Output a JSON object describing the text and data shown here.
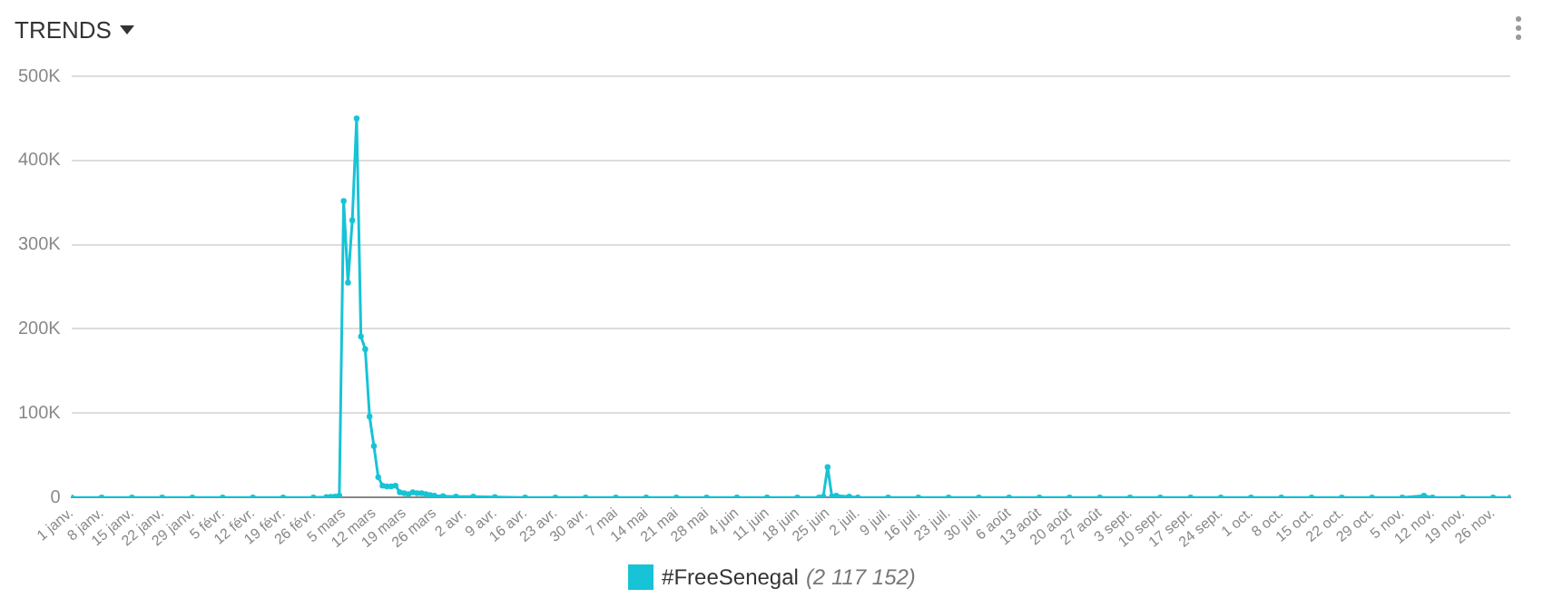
{
  "chart_data": {
    "type": "line",
    "title": "TRENDS",
    "x": [
      "--01-01",
      "--01-08",
      "--01-15",
      "--01-22",
      "--01-29",
      "--02-05",
      "--02-12",
      "--02-19",
      "--02-26",
      "--03-01",
      "--03-02",
      "--03-03",
      "--03-04",
      "--03-05",
      "--03-06",
      "--03-07",
      "--03-08",
      "--03-09",
      "--03-10",
      "--03-11",
      "--03-12",
      "--03-13",
      "--03-14",
      "--03-15",
      "--03-16",
      "--03-17",
      "--03-18",
      "--03-19",
      "--03-20",
      "--03-21",
      "--03-22",
      "--03-23",
      "--03-24",
      "--03-25",
      "--03-26",
      "--03-28",
      "--03-31",
      "--04-04",
      "--04-09",
      "--04-16",
      "--04-23",
      "--04-30",
      "--05-07",
      "--05-14",
      "--05-21",
      "--05-28",
      "--06-04",
      "--06-11",
      "--06-18",
      "--06-23",
      "--06-24",
      "--06-25",
      "--06-26",
      "--06-27",
      "--06-30",
      "--07-02",
      "--07-09",
      "--07-16",
      "--07-23",
      "--07-30",
      "--08-06",
      "--08-13",
      "--08-20",
      "--08-27",
      "--09-03",
      "--09-10",
      "--09-17",
      "--09-24",
      "--10-01",
      "--10-08",
      "--10-15",
      "--10-22",
      "--10-29",
      "--11-05",
      "--11-10",
      "--11-12",
      "--11-19",
      "--11-26",
      "--11-30"
    ],
    "series": [
      {
        "name": "#FreeSenegal",
        "color": "#17c3d6",
        "values": [
          0,
          0,
          0,
          0,
          0,
          0,
          0,
          0,
          0,
          500,
          800,
          1000,
          2000,
          352000,
          255000,
          329000,
          450000,
          191000,
          176000,
          96000,
          61000,
          24000,
          14000,
          13000,
          13000,
          14000,
          6000,
          5000,
          4000,
          6000,
          5000,
          5000,
          4000,
          3000,
          2000,
          1500,
          1000,
          1000,
          500,
          0,
          0,
          0,
          0,
          0,
          0,
          0,
          0,
          0,
          0,
          0,
          1000,
          36000,
          1000,
          2000,
          1000,
          0,
          0,
          0,
          0,
          0,
          0,
          0,
          0,
          0,
          0,
          0,
          0,
          0,
          0,
          0,
          0,
          0,
          0,
          0,
          2000,
          0,
          0,
          0,
          0
        ]
      }
    ],
    "annotations": [
      "(2 117 152)"
    ],
    "xlim": [
      "--01-01",
      "--11-30"
    ],
    "xticks": [
      {
        "value": "--01-01",
        "label": "1 janv."
      },
      {
        "value": "--01-08",
        "label": "8 janv."
      },
      {
        "value": "--01-15",
        "label": "15 janv."
      },
      {
        "value": "--01-22",
        "label": "22 janv."
      },
      {
        "value": "--01-29",
        "label": "29 janv."
      },
      {
        "value": "--02-05",
        "label": "5 févr."
      },
      {
        "value": "--02-12",
        "label": "12 févr."
      },
      {
        "value": "--02-19",
        "label": "19 févr."
      },
      {
        "value": "--02-26",
        "label": "26 févr."
      },
      {
        "value": "--03-05",
        "label": "5 mars"
      },
      {
        "value": "--03-12",
        "label": "12 mars"
      },
      {
        "value": "--03-19",
        "label": "19 mars"
      },
      {
        "value": "--03-26",
        "label": "26 mars"
      },
      {
        "value": "--04-02",
        "label": "2 avr."
      },
      {
        "value": "--04-09",
        "label": "9 avr."
      },
      {
        "value": "--04-16",
        "label": "16 avr."
      },
      {
        "value": "--04-23",
        "label": "23 avr."
      },
      {
        "value": "--04-30",
        "label": "30 avr."
      },
      {
        "value": "--05-07",
        "label": "7 mai"
      },
      {
        "value": "--05-14",
        "label": "14 mai"
      },
      {
        "value": "--05-21",
        "label": "21 mai"
      },
      {
        "value": "--05-28",
        "label": "28 mai"
      },
      {
        "value": "--06-04",
        "label": "4 juin"
      },
      {
        "value": "--06-11",
        "label": "11 juin"
      },
      {
        "value": "--06-18",
        "label": "18 juin"
      },
      {
        "value": "--06-25",
        "label": "25 juin"
      },
      {
        "value": "--07-02",
        "label": "2 juil."
      },
      {
        "value": "--07-09",
        "label": "9 juil."
      },
      {
        "value": "--07-16",
        "label": "16 juil."
      },
      {
        "value": "--07-23",
        "label": "23 juil."
      },
      {
        "value": "--07-30",
        "label": "30 juil."
      },
      {
        "value": "--08-06",
        "label": "6 août"
      },
      {
        "value": "--08-13",
        "label": "13 août"
      },
      {
        "value": "--08-20",
        "label": "20 août"
      },
      {
        "value": "--08-27",
        "label": "27 août"
      },
      {
        "value": "--09-03",
        "label": "3 sept."
      },
      {
        "value": "--09-10",
        "label": "10 sept."
      },
      {
        "value": "--09-17",
        "label": "17 sept."
      },
      {
        "value": "--09-24",
        "label": "24 sept."
      },
      {
        "value": "--10-01",
        "label": "1 oct."
      },
      {
        "value": "--10-08",
        "label": "8 oct."
      },
      {
        "value": "--10-15",
        "label": "15 oct."
      },
      {
        "value": "--10-22",
        "label": "22 oct."
      },
      {
        "value": "--10-29",
        "label": "29 oct."
      },
      {
        "value": "--11-05",
        "label": "5 nov."
      },
      {
        "value": "--11-12",
        "label": "12 nov."
      },
      {
        "value": "--11-19",
        "label": "19 nov."
      },
      {
        "value": "--11-26",
        "label": "26 nov."
      }
    ],
    "ylim": [
      0,
      500000
    ],
    "yticks": [
      0,
      {
        "value": 100000,
        "label": "100K"
      },
      {
        "value": 200000,
        "label": "200K"
      },
      {
        "value": 300000,
        "label": "300K"
      },
      {
        "value": 400000,
        "label": "400K"
      },
      {
        "value": 500000,
        "label": "500K"
      }
    ],
    "grid": "y",
    "legend": "bottom",
    "marker": "circle",
    "line_style": "solid"
  }
}
